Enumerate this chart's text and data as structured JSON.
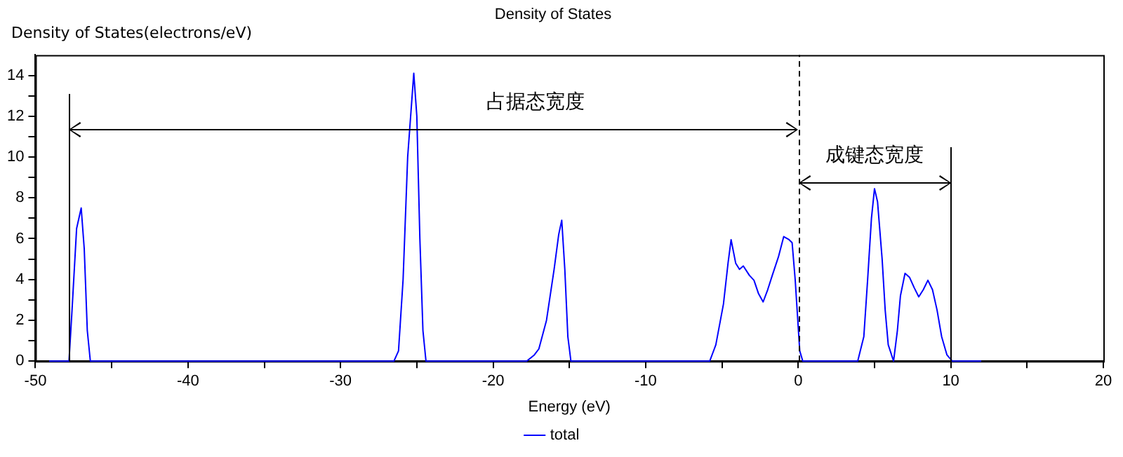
{
  "chart_data": {
    "type": "line",
    "title": "Density of States",
    "xlabel": "Energy (eV)",
    "ylabel": "Density of States(electrons/eV)",
    "xlim": [
      -50,
      20
    ],
    "ylim": [
      0,
      15
    ],
    "xticks": [
      -50,
      {
        "value": -45,
        "label": null
      },
      -40,
      {
        "value": -35,
        "label": null
      },
      -30,
      {
        "value": -25,
        "label": null
      },
      -20,
      {
        "value": -15,
        "label": null
      },
      -10,
      {
        "value": -5,
        "label": null
      },
      0,
      {
        "value": 5,
        "label": null
      },
      10,
      {
        "value": 15,
        "label": null
      },
      20
    ],
    "yticks": [
      0,
      {
        "value": 1,
        "label": null
      },
      2,
      {
        "value": 3,
        "label": null
      },
      4,
      {
        "value": 5,
        "label": null
      },
      6,
      {
        "value": 7,
        "label": null
      },
      8,
      {
        "value": 9,
        "label": null
      },
      10,
      {
        "value": 11,
        "label": null
      },
      12,
      {
        "value": 13,
        "label": null
      },
      14
    ],
    "grid": false,
    "legend": "bottom",
    "marker": "none",
    "line_style": "solid",
    "ref_lines": [
      {
        "axis": "x",
        "value": -47.8,
        "label": null,
        "color": "#000000",
        "line_style": "solid"
      },
      {
        "axis": "x",
        "value": 0,
        "label": null,
        "color": "#000000",
        "line_style": "dashed"
      },
      {
        "axis": "x",
        "value": 10,
        "label": null,
        "color": "#000000",
        "line_style": "solid"
      }
    ],
    "annotations": [
      "占据态宽度",
      "成键态宽度"
    ],
    "series": [
      {
        "name": "total",
        "color": "#0000ff",
        "x": [
          -49.1,
          -47.8,
          -47.6,
          -47.3,
          -47.0,
          -46.8,
          -46.6,
          -46.4,
          -26.5,
          -26.2,
          -25.9,
          -25.6,
          -25.2,
          -25.0,
          -24.8,
          -24.6,
          -24.4,
          -17.8,
          -17.3,
          -17.0,
          -16.5,
          -16.0,
          -15.7,
          -15.5,
          -15.3,
          -15.1,
          -14.9,
          -5.8,
          -5.4,
          -4.9,
          -4.6,
          -4.4,
          -4.1,
          -3.85,
          -3.6,
          -3.2,
          -2.9,
          -2.6,
          -2.3,
          -2.0,
          -1.7,
          -1.3,
          -0.95,
          -0.6,
          -0.4,
          -0.2,
          0.1,
          0.3,
          3.9,
          4.3,
          4.55,
          4.8,
          5.0,
          5.2,
          5.5,
          5.7,
          5.9,
          6.25,
          6.5,
          6.7,
          7.0,
          7.3,
          7.6,
          7.9,
          8.2,
          8.5,
          8.8,
          9.1,
          9.4,
          9.75,
          10.1,
          12.0
        ],
        "values": [
          0,
          0,
          2.5,
          6.5,
          7.5,
          5.5,
          1.5,
          0,
          0,
          0.5,
          4,
          10,
          14.1,
          12,
          6,
          1.5,
          0,
          0,
          0.3,
          0.6,
          2,
          4.5,
          6.2,
          6.9,
          4.5,
          1.2,
          0,
          0,
          0.8,
          2.8,
          4.8,
          5.95,
          4.8,
          4.5,
          4.66,
          4.2,
          3.96,
          3.3,
          2.9,
          3.5,
          4.2,
          5.1,
          6.1,
          5.95,
          5.8,
          4,
          0.5,
          0,
          0,
          1.2,
          4,
          7,
          8.45,
          7.8,
          5,
          2.5,
          0.8,
          0,
          1.5,
          3.2,
          4.3,
          4.1,
          3.6,
          3.15,
          3.5,
          3.96,
          3.5,
          2.5,
          1.2,
          0.3,
          0,
          0
        ]
      }
    ]
  }
}
